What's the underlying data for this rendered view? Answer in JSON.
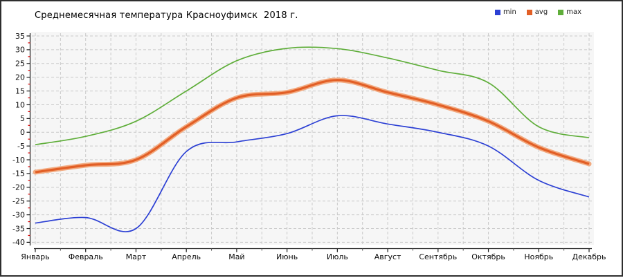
{
  "chart": {
    "title": "Среднемесячная температура Красноуфимск  2018 г."
  },
  "chart_data": {
    "type": "line",
    "title": "Среднемесячная температура Красноуфимск  2018 г.",
    "categories": [
      "Январь",
      "Февраль",
      "Март",
      "Апрель",
      "Май",
      "Июнь",
      "Июль",
      "Август",
      "Сентябрь",
      "Октябрь",
      "Ноябрь",
      "Декабрь"
    ],
    "series": [
      {
        "name": "min",
        "color": "#2c40d4",
        "line_width": 1.7,
        "values": [
          -33,
          -31,
          -35,
          -7,
          -3.5,
          -0.5,
          6,
          3,
          0,
          -5,
          -17.5,
          -23.5
        ]
      },
      {
        "name": "avg",
        "color": "#e25f26",
        "halo_color": "#f2aa80",
        "line_width": 3.2,
        "emphasized": true,
        "values": [
          -14.5,
          -12,
          -10,
          2,
          12.5,
          14.5,
          19,
          14.5,
          10,
          4,
          -5.5,
          -11.5
        ]
      },
      {
        "name": "max",
        "color": "#5fae3a",
        "line_width": 1.7,
        "values": [
          -4.5,
          -1.5,
          4,
          15,
          26,
          30.5,
          30.4,
          27,
          22.5,
          18,
          2,
          -2
        ]
      }
    ],
    "xlabel": "",
    "ylabel": "",
    "ylim": [
      -40,
      35
    ],
    "ytick_step": 5,
    "ytick_minor_step": 2.5,
    "grid": true,
    "grid_style": "dashed",
    "legend_position": "top-right",
    "colors": {
      "plot_background": "#f6f6f6",
      "grid": "#c9c9c9",
      "axis": "#1a1a1a",
      "minor_tick_red": "#dd0000"
    }
  }
}
